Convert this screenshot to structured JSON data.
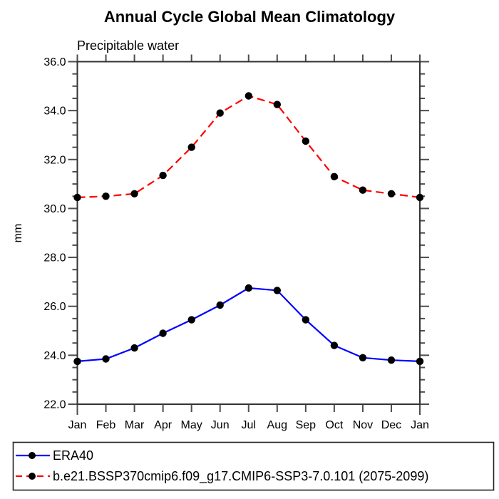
{
  "title": "Annual Cycle Global Mean Climatology",
  "subtitle": "Precipitable water",
  "ylabel": "mm",
  "colors": {
    "background": "#ffffff",
    "frame": "#333333",
    "ticks": "#4d4d4d",
    "marker": "#000000",
    "era40_line": "#0000ff",
    "model_line": "#ff0000",
    "legend_border": "#222222"
  },
  "legend": {
    "items": [
      {
        "label": "ERA40",
        "line_style": "solid",
        "line_color": "#0000ff"
      },
      {
        "label": "b.e21.BSSP370cmip6.f09_g17.CMIP6-SSP3-7.0.101 (2075-2099)",
        "line_style": "dashed",
        "line_color": "#ff0000"
      }
    ]
  },
  "chart_data": {
    "type": "line",
    "title": "Annual Cycle Global Mean Climatology",
    "subtitle": "Precipitable water",
    "ylabel": "mm",
    "xlabel": "",
    "categories": [
      "Jan",
      "Feb",
      "Mar",
      "Apr",
      "May",
      "Jun",
      "Jul",
      "Aug",
      "Sep",
      "Oct",
      "Nov",
      "Dec",
      "Jan"
    ],
    "series": [
      {
        "name": "ERA40",
        "color": "#0000ff",
        "dash": "solid",
        "marker": "filled-circle",
        "values": [
          23.75,
          23.85,
          24.3,
          24.9,
          25.45,
          26.05,
          26.75,
          26.65,
          25.45,
          24.4,
          23.9,
          23.8,
          23.75
        ]
      },
      {
        "name": "b.e21.BSSP370cmip6.f09_g17.CMIP6-SSP3-7.0.101 (2075-2099)",
        "color": "#ff0000",
        "dash": "dashed",
        "marker": "filled-circle",
        "values": [
          30.45,
          30.5,
          30.6,
          31.35,
          32.5,
          33.9,
          34.6,
          34.25,
          32.75,
          31.3,
          30.75,
          30.6,
          30.45
        ]
      }
    ],
    "ylim": [
      22.0,
      36.0
    ],
    "ytick_major_step": 2.0,
    "ytick_minor_step": 0.5,
    "ytick_labels": [
      "22.0",
      "24.0",
      "26.0",
      "28.0",
      "30.0",
      "32.0",
      "34.0",
      "36.0"
    ],
    "grid": false,
    "legend_position": "bottom-left-box"
  }
}
